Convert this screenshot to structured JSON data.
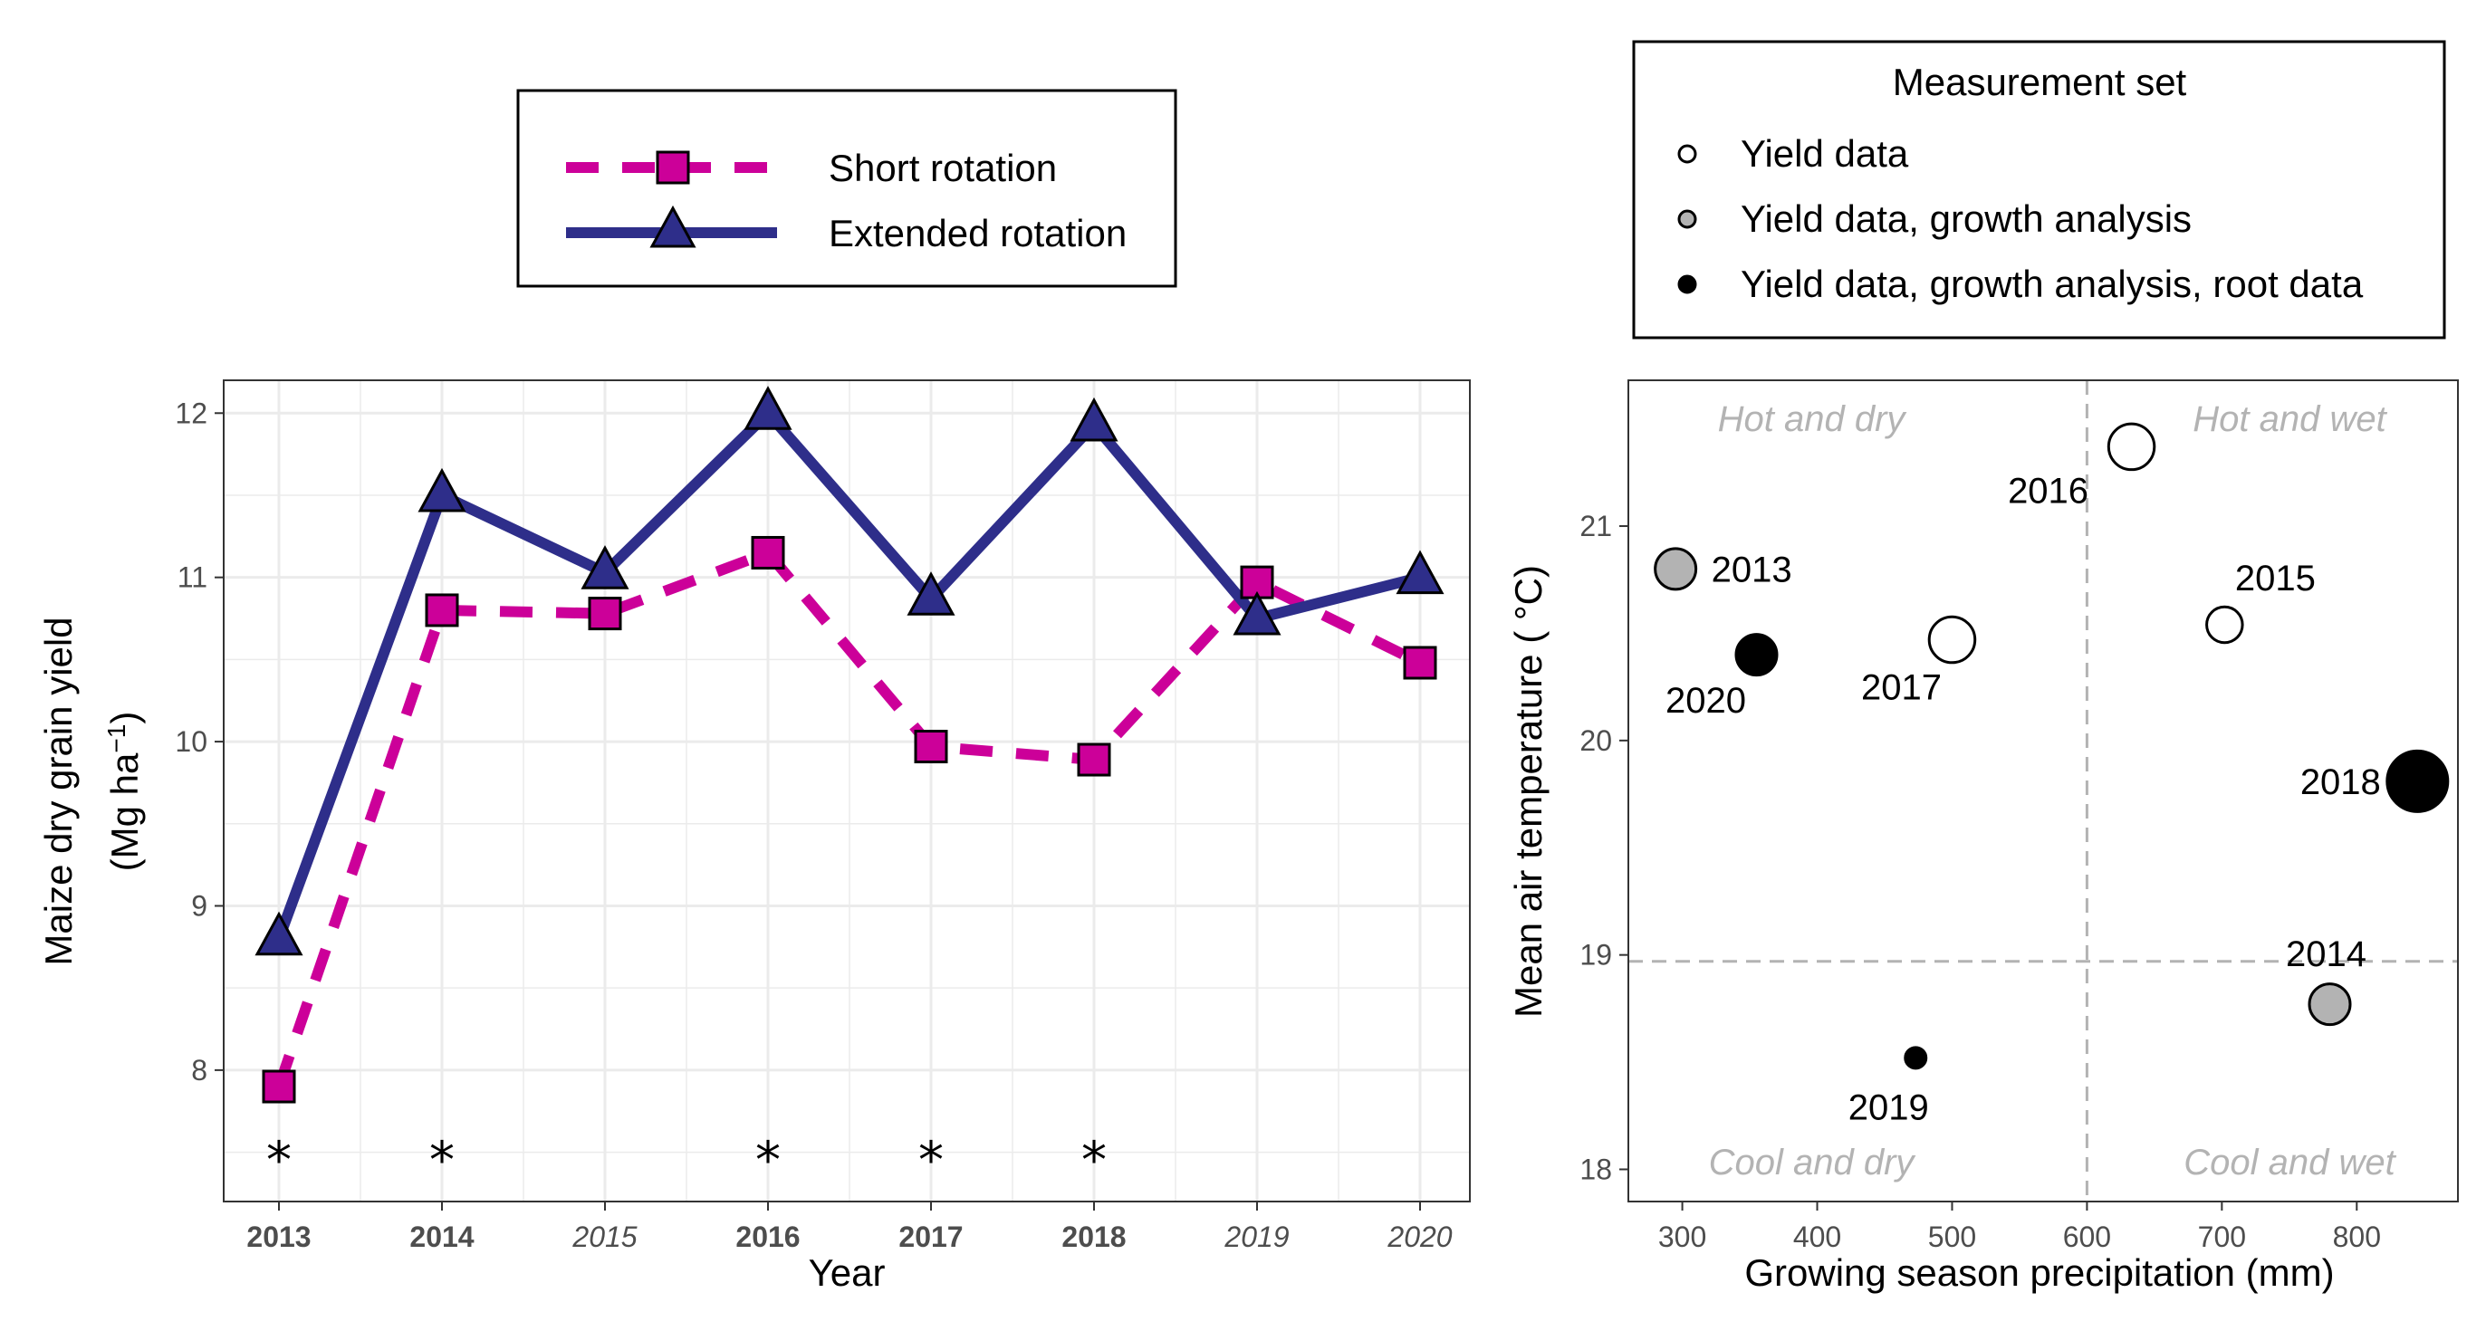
{
  "colors": {
    "short": "#cc0099",
    "extended": "#2e2e8a",
    "grid": "#ebebeb",
    "quadrant_text": "#b3b3b3",
    "refline": "#b3b3b3"
  },
  "legend_left": {
    "items": [
      {
        "label": "Short rotation",
        "marker": "square",
        "linestyle": "dashed"
      },
      {
        "label": "Extended rotation",
        "marker": "triangle",
        "linestyle": "solid"
      }
    ]
  },
  "legend_right": {
    "title": "Measurement set",
    "items": [
      {
        "label": "Yield data",
        "fill": "white"
      },
      {
        "label": "Yield data, growth analysis",
        "fill": "grey"
      },
      {
        "label": "Yield data, growth analysis, root data",
        "fill": "black"
      }
    ]
  },
  "chart_data": [
    {
      "type": "line",
      "xlabel": "Year",
      "ylabel_line1": "Maize dry grain yield",
      "ylabel_line2": "(Mg  ha",
      "ylabel_sup": "−1",
      "ylabel_close": ")",
      "categories": [
        "2013",
        "2014",
        "2015",
        "2016",
        "2017",
        "2018",
        "2019",
        "2020"
      ],
      "category_style": [
        "bold",
        "bold",
        "italic",
        "bold",
        "bold",
        "bold",
        "italic",
        "italic"
      ],
      "ylim": [
        7.2,
        12.2
      ],
      "yticks": [
        8,
        9,
        10,
        11,
        12
      ],
      "series": [
        {
          "name": "Short rotation",
          "values": [
            7.9,
            10.8,
            10.78,
            11.15,
            9.97,
            9.89,
            10.97,
            10.48
          ]
        },
        {
          "name": "Extended rotation",
          "values": [
            8.8,
            11.5,
            11.03,
            12.0,
            10.87,
            11.93,
            10.75,
            11.0
          ]
        }
      ],
      "significance": {
        "marker": "*",
        "categories": [
          "2013",
          "2014",
          "2016",
          "2017",
          "2018"
        ]
      }
    },
    {
      "type": "scatter",
      "xlabel": "Growing season precipitation (mm)",
      "ylabel": "Mean air temperature ( °C)",
      "xlim": [
        260,
        875
      ],
      "ylim": [
        17.85,
        21.68
      ],
      "xticks": [
        300,
        400,
        500,
        600,
        700,
        800
      ],
      "yticks": [
        18,
        19,
        20,
        21
      ],
      "vline": 600,
      "hline": 18.97,
      "quadrants": {
        "top_left": "Hot and dry",
        "top_right": "Hot and wet",
        "bottom_left": "Cool and dry",
        "bottom_right": "Cool and wet"
      },
      "points": [
        {
          "label": "2013",
          "x": 295,
          "y": 20.8,
          "set": "grey",
          "size": 3
        },
        {
          "label": "2014",
          "x": 780,
          "y": 18.77,
          "set": "grey",
          "size": 3
        },
        {
          "label": "2015",
          "x": 702,
          "y": 20.54,
          "set": "white",
          "size": 2.5
        },
        {
          "label": "2016",
          "x": 633,
          "y": 21.37,
          "set": "white",
          "size": 3.5
        },
        {
          "label": "2017",
          "x": 500,
          "y": 20.47,
          "set": "white",
          "size": 3.5
        },
        {
          "label": "2018",
          "x": 845,
          "y": 19.81,
          "set": "black",
          "size": 5
        },
        {
          "label": "2019",
          "x": 473,
          "y": 18.52,
          "set": "black",
          "size": 1
        },
        {
          "label": "2020",
          "x": 355,
          "y": 20.4,
          "set": "black",
          "size": 3
        }
      ]
    }
  ]
}
